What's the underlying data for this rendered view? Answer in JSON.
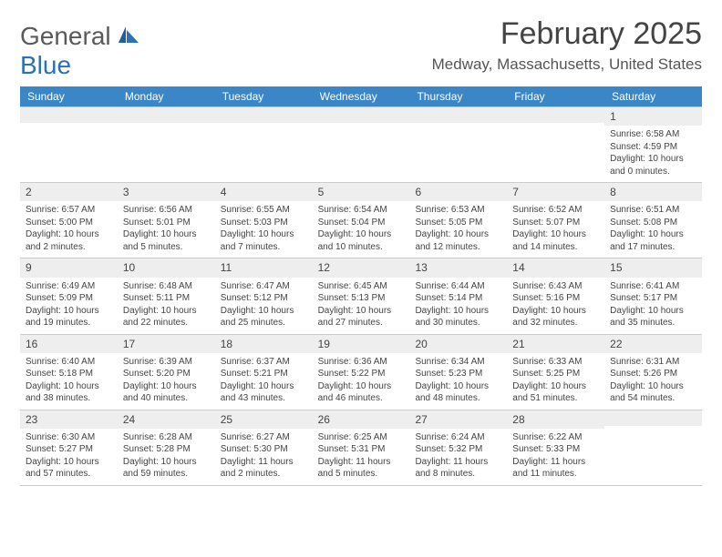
{
  "logo": {
    "text1": "General",
    "text2": "Blue"
  },
  "title": "February 2025",
  "location": "Medway, Massachusetts, United States",
  "header_bg": "#3b86c7",
  "weekdays": [
    "Sunday",
    "Monday",
    "Tuesday",
    "Wednesday",
    "Thursday",
    "Friday",
    "Saturday"
  ],
  "weeks": [
    [
      {
        "n": "",
        "lines": []
      },
      {
        "n": "",
        "lines": []
      },
      {
        "n": "",
        "lines": []
      },
      {
        "n": "",
        "lines": []
      },
      {
        "n": "",
        "lines": []
      },
      {
        "n": "",
        "lines": []
      },
      {
        "n": "1",
        "lines": [
          "Sunrise: 6:58 AM",
          "Sunset: 4:59 PM",
          "Daylight: 10 hours and 0 minutes."
        ]
      }
    ],
    [
      {
        "n": "2",
        "lines": [
          "Sunrise: 6:57 AM",
          "Sunset: 5:00 PM",
          "Daylight: 10 hours and 2 minutes."
        ]
      },
      {
        "n": "3",
        "lines": [
          "Sunrise: 6:56 AM",
          "Sunset: 5:01 PM",
          "Daylight: 10 hours and 5 minutes."
        ]
      },
      {
        "n": "4",
        "lines": [
          "Sunrise: 6:55 AM",
          "Sunset: 5:03 PM",
          "Daylight: 10 hours and 7 minutes."
        ]
      },
      {
        "n": "5",
        "lines": [
          "Sunrise: 6:54 AM",
          "Sunset: 5:04 PM",
          "Daylight: 10 hours and 10 minutes."
        ]
      },
      {
        "n": "6",
        "lines": [
          "Sunrise: 6:53 AM",
          "Sunset: 5:05 PM",
          "Daylight: 10 hours and 12 minutes."
        ]
      },
      {
        "n": "7",
        "lines": [
          "Sunrise: 6:52 AM",
          "Sunset: 5:07 PM",
          "Daylight: 10 hours and 14 minutes."
        ]
      },
      {
        "n": "8",
        "lines": [
          "Sunrise: 6:51 AM",
          "Sunset: 5:08 PM",
          "Daylight: 10 hours and 17 minutes."
        ]
      }
    ],
    [
      {
        "n": "9",
        "lines": [
          "Sunrise: 6:49 AM",
          "Sunset: 5:09 PM",
          "Daylight: 10 hours and 19 minutes."
        ]
      },
      {
        "n": "10",
        "lines": [
          "Sunrise: 6:48 AM",
          "Sunset: 5:11 PM",
          "Daylight: 10 hours and 22 minutes."
        ]
      },
      {
        "n": "11",
        "lines": [
          "Sunrise: 6:47 AM",
          "Sunset: 5:12 PM",
          "Daylight: 10 hours and 25 minutes."
        ]
      },
      {
        "n": "12",
        "lines": [
          "Sunrise: 6:45 AM",
          "Sunset: 5:13 PM",
          "Daylight: 10 hours and 27 minutes."
        ]
      },
      {
        "n": "13",
        "lines": [
          "Sunrise: 6:44 AM",
          "Sunset: 5:14 PM",
          "Daylight: 10 hours and 30 minutes."
        ]
      },
      {
        "n": "14",
        "lines": [
          "Sunrise: 6:43 AM",
          "Sunset: 5:16 PM",
          "Daylight: 10 hours and 32 minutes."
        ]
      },
      {
        "n": "15",
        "lines": [
          "Sunrise: 6:41 AM",
          "Sunset: 5:17 PM",
          "Daylight: 10 hours and 35 minutes."
        ]
      }
    ],
    [
      {
        "n": "16",
        "lines": [
          "Sunrise: 6:40 AM",
          "Sunset: 5:18 PM",
          "Daylight: 10 hours and 38 minutes."
        ]
      },
      {
        "n": "17",
        "lines": [
          "Sunrise: 6:39 AM",
          "Sunset: 5:20 PM",
          "Daylight: 10 hours and 40 minutes."
        ]
      },
      {
        "n": "18",
        "lines": [
          "Sunrise: 6:37 AM",
          "Sunset: 5:21 PM",
          "Daylight: 10 hours and 43 minutes."
        ]
      },
      {
        "n": "19",
        "lines": [
          "Sunrise: 6:36 AM",
          "Sunset: 5:22 PM",
          "Daylight: 10 hours and 46 minutes."
        ]
      },
      {
        "n": "20",
        "lines": [
          "Sunrise: 6:34 AM",
          "Sunset: 5:23 PM",
          "Daylight: 10 hours and 48 minutes."
        ]
      },
      {
        "n": "21",
        "lines": [
          "Sunrise: 6:33 AM",
          "Sunset: 5:25 PM",
          "Daylight: 10 hours and 51 minutes."
        ]
      },
      {
        "n": "22",
        "lines": [
          "Sunrise: 6:31 AM",
          "Sunset: 5:26 PM",
          "Daylight: 10 hours and 54 minutes."
        ]
      }
    ],
    [
      {
        "n": "23",
        "lines": [
          "Sunrise: 6:30 AM",
          "Sunset: 5:27 PM",
          "Daylight: 10 hours and 57 minutes."
        ]
      },
      {
        "n": "24",
        "lines": [
          "Sunrise: 6:28 AM",
          "Sunset: 5:28 PM",
          "Daylight: 10 hours and 59 minutes."
        ]
      },
      {
        "n": "25",
        "lines": [
          "Sunrise: 6:27 AM",
          "Sunset: 5:30 PM",
          "Daylight: 11 hours and 2 minutes."
        ]
      },
      {
        "n": "26",
        "lines": [
          "Sunrise: 6:25 AM",
          "Sunset: 5:31 PM",
          "Daylight: 11 hours and 5 minutes."
        ]
      },
      {
        "n": "27",
        "lines": [
          "Sunrise: 6:24 AM",
          "Sunset: 5:32 PM",
          "Daylight: 11 hours and 8 minutes."
        ]
      },
      {
        "n": "28",
        "lines": [
          "Sunrise: 6:22 AM",
          "Sunset: 5:33 PM",
          "Daylight: 11 hours and 11 minutes."
        ]
      },
      {
        "n": "",
        "lines": []
      }
    ]
  ]
}
